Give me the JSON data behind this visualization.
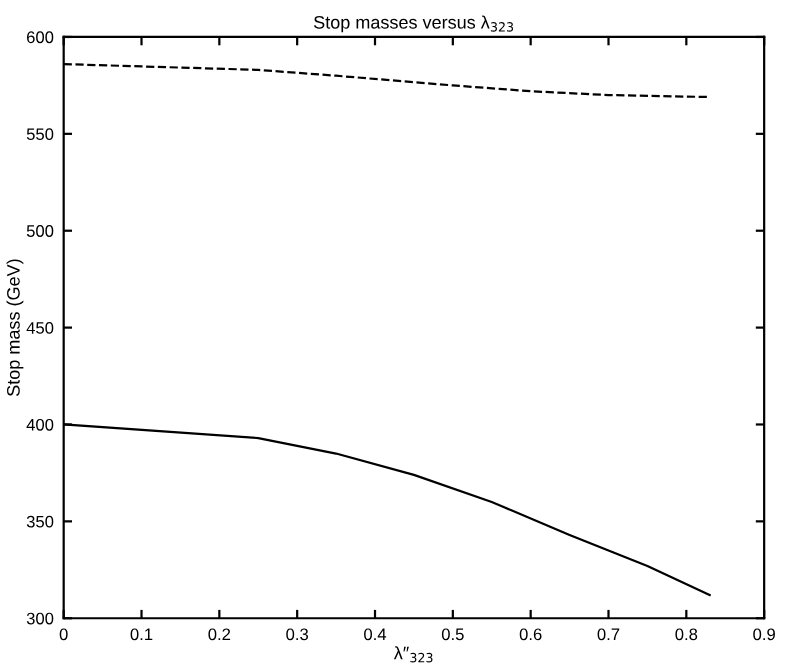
{
  "chart_data": {
    "type": "line",
    "title": "Stop masses versus λ$_{323}$",
    "xlabel": "λ″$_{323}$",
    "ylabel": "Stop mass (GeV)",
    "x": [
      0,
      0.25,
      0.35,
      0.45,
      0.55,
      0.65,
      0.75,
      0.83
    ],
    "series": [
      {
        "color": "#000000",
        "line_style": "solid",
        "values": [
          400,
          393,
          385,
          374,
          360,
          343,
          327,
          312
        ]
      },
      {
        "color": "#000000",
        "line_style": "dashed",
        "x": [
          0,
          0.25,
          0.35,
          0.5,
          0.6,
          0.7,
          0.83
        ],
        "values": [
          586,
          583,
          580,
          575,
          572,
          570,
          569
        ]
      }
    ],
    "xlim": [
      0,
      0.9
    ],
    "xticks": [
      0,
      0.1,
      0.2,
      0.3,
      0.4,
      0.5,
      0.6,
      0.7,
      0.8,
      0.9
    ],
    "ylim": [
      300,
      600
    ],
    "yticks": [
      300,
      350,
      400,
      450,
      500,
      550,
      600
    ],
    "grid": false,
    "legend": false,
    "marker": "none"
  }
}
